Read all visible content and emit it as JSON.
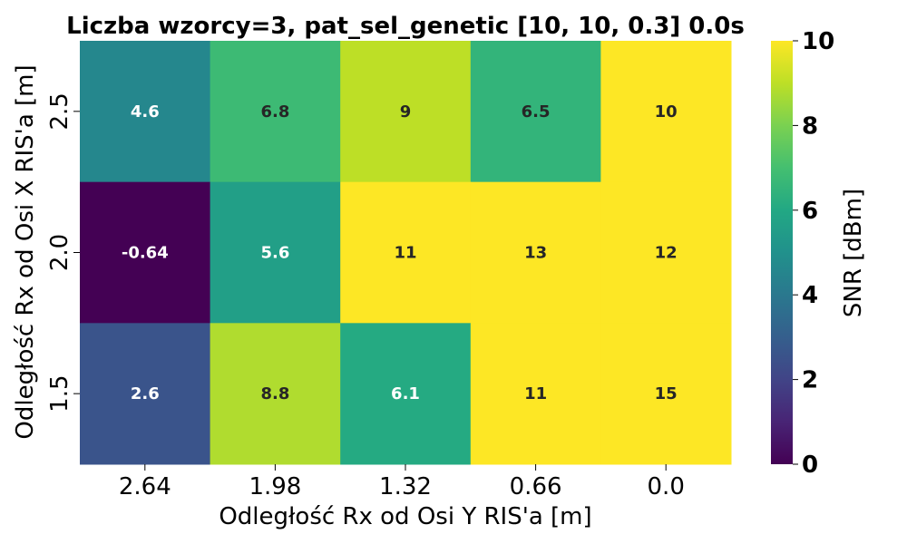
{
  "chart_data": {
    "type": "heatmap",
    "title": "Liczba wzorcy=3, pat_sel_genetic [10, 10, 0.3] 0.0s",
    "xlabel": "Odległość Rx od Osi Y RIS'a [m]",
    "ylabel": "Odległość Rx od Osi X RIS'a [m]",
    "x_categories": [
      "2.64",
      "1.98",
      "1.32",
      "0.66",
      "0.0"
    ],
    "y_categories": [
      "2.5",
      "2.0",
      "1.5"
    ],
    "values": [
      [
        4.6,
        6.8,
        9,
        6.5,
        10
      ],
      [
        -0.64,
        5.6,
        11,
        13,
        12
      ],
      [
        2.6,
        8.8,
        6.1,
        11,
        15
      ]
    ],
    "labels": [
      [
        "4.6",
        "6.8",
        "9",
        "6.5",
        "10"
      ],
      [
        "-0.64",
        "5.6",
        "11",
        "13",
        "12"
      ],
      [
        "2.6",
        "8.8",
        "6.1",
        "11",
        "15"
      ]
    ],
    "colormap": "viridis",
    "vmin": 0,
    "vmax": 10,
    "colorbar": {
      "label": "SNR [dBm]",
      "ticks": [
        "0",
        "2",
        "4",
        "6",
        "8",
        "10"
      ]
    }
  }
}
